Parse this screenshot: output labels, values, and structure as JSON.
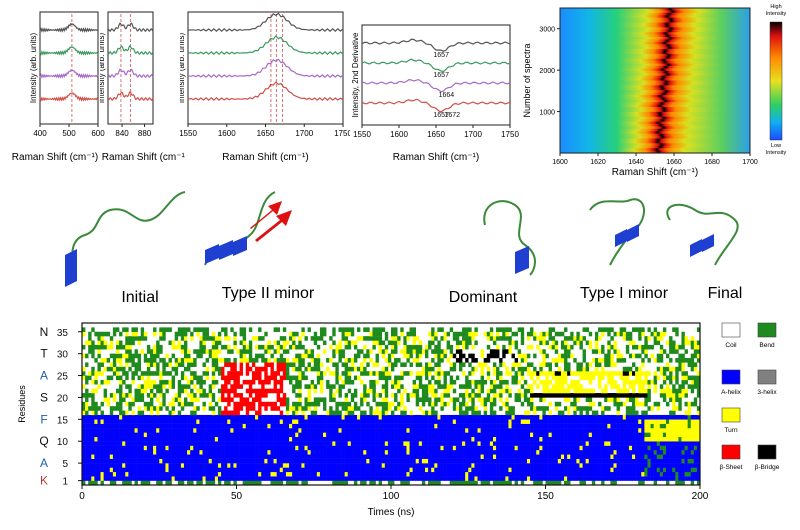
{
  "raman_panels": [
    {
      "xlabel": "Raman Shift (cm⁻¹)",
      "ylabel": "Intensity (arb. units)",
      "xticks": [
        "400",
        "500",
        "600"
      ],
      "xlim": [
        400,
        600
      ],
      "peak_markers": [
        510
      ],
      "annotations": []
    },
    {
      "xlabel": "Raman Shift (cm⁻¹)",
      "ylabel": "Intensity (arb. units)",
      "xticks": [
        "840",
        "880"
      ],
      "xlim": [
        815,
        895
      ],
      "peak_markers": [
        838,
        855
      ],
      "annotations": []
    },
    {
      "xlabel": "Raman Shift (cm⁻¹)",
      "ylabel": "Intensity (arb. units)",
      "xticks": [
        "1550",
        "1600",
        "1650",
        "1700",
        "1750"
      ],
      "xlim": [
        1550,
        1750
      ],
      "peak_markers": [
        1657,
        1664,
        1672
      ],
      "annotations": []
    },
    {
      "xlabel": "Raman Shift (cm⁻¹)",
      "ylabel": "Intensity, 2nd Derivative",
      "xticks": [
        "1550",
        "1600",
        "1650",
        "1700",
        "1750"
      ],
      "xlim": [
        1550,
        1750
      ],
      "peak_markers": [],
      "annotations": [
        {
          "text": "1657",
          "x": 1657,
          "trace": 1
        },
        {
          "text": "1657",
          "x": 1657,
          "trace": 2
        },
        {
          "text": "1664",
          "x": 1664,
          "trace": 3
        },
        {
          "text": "1657",
          "x": 1657,
          "trace": 4
        },
        {
          "text": "1672",
          "x": 1672,
          "trace": 4
        }
      ]
    }
  ],
  "trace_colors": [
    "#555555",
    "#3a9a60",
    "#a86ac8",
    "#d0504a"
  ],
  "heatmap": {
    "xlabel": "Raman Shift (cm⁻¹)",
    "ylabel": "Number of spectra",
    "xticks": [
      "1600",
      "1620",
      "1640",
      "1660",
      "1680",
      "1700"
    ],
    "xlim": [
      1600,
      1700
    ],
    "yticks": [
      "1000",
      "2000",
      "3000"
    ],
    "ylim": [
      0,
      3500
    ],
    "peak_center": 1655,
    "colorbar_high": "High\nIntensity",
    "colorbar_low": "Low\nIntensity"
  },
  "structures": [
    "Initial",
    "Type II minor",
    "Dominant",
    "Type I minor",
    "Final"
  ],
  "dssp": {
    "xlabel": "Times (ns)",
    "ylabel": "Residues",
    "xticks": [
      "0",
      "50",
      "100",
      "150",
      "200"
    ],
    "xlim": [
      0,
      200
    ],
    "ylim": [
      0,
      37
    ],
    "residue_letters": [
      {
        "letter": "N",
        "number": "35",
        "color": "#111111"
      },
      {
        "letter": "T",
        "number": "30",
        "color": "#111111"
      },
      {
        "letter": "A",
        "number": "25",
        "color": "#1f5fae"
      },
      {
        "letter": "S",
        "number": "20",
        "color": "#111111"
      },
      {
        "letter": "F",
        "number": "15",
        "color": "#1f5fae"
      },
      {
        "letter": "Q",
        "number": "10",
        "color": "#111111"
      },
      {
        "letter": "A",
        "number": "5",
        "color": "#1f5fae"
      },
      {
        "letter": "K",
        "number": "1",
        "color": "#c0392b"
      }
    ],
    "legend": [
      {
        "label": "Coil",
        "color": "#ffffff"
      },
      {
        "label": "Bend",
        "color": "#1e8a1e"
      },
      {
        "label": "A-helix",
        "color": "#0000ff"
      },
      {
        "label": "3-helix",
        "color": "#808080"
      },
      {
        "label": "Turn",
        "color": "#ffff00"
      },
      {
        "label": "β-Sheet",
        "color": "#ff0000"
      },
      {
        "label": "β-Bridge",
        "color": "#000000"
      }
    ]
  }
}
